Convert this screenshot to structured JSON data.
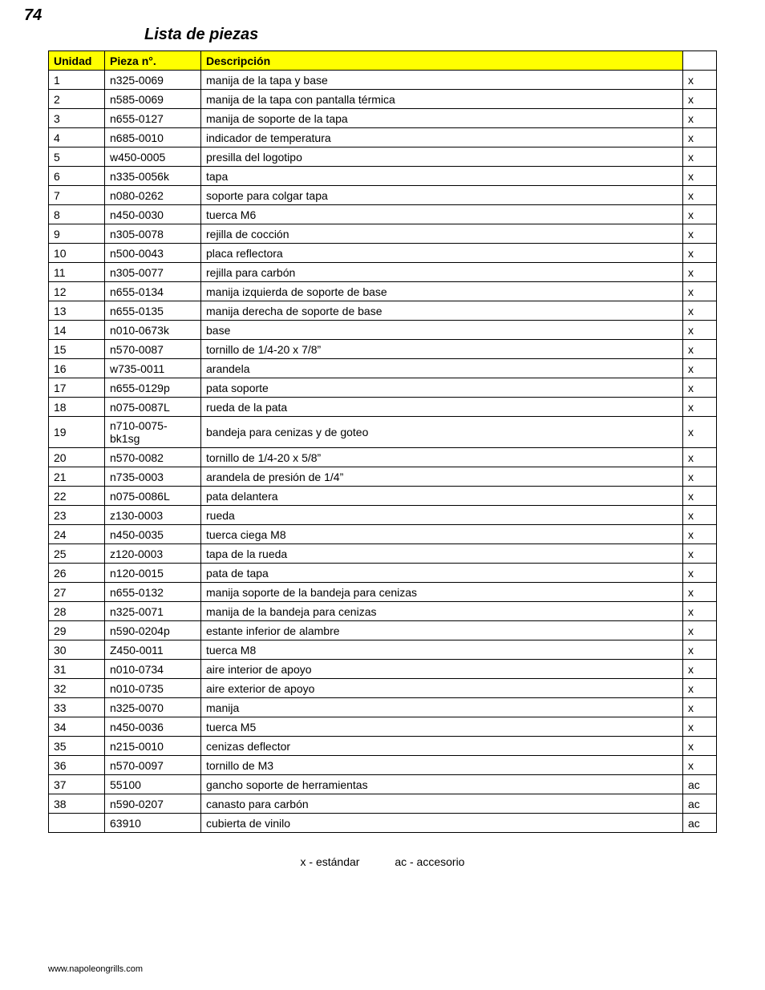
{
  "page_number": "74",
  "title": "Lista de piezas",
  "headers": {
    "unidad": "Unidad",
    "pieza": "Pieza n°.",
    "descripcion": "Descripción",
    "flag": ""
  },
  "rows": [
    {
      "unidad": "1",
      "pieza": "n325-0069",
      "desc": "manija de la tapa y base",
      "flag": "x"
    },
    {
      "unidad": "2",
      "pieza": "n585-0069",
      "desc": "manija de la tapa con pantalla térmica",
      "flag": "x"
    },
    {
      "unidad": "3",
      "pieza": "n655-0127",
      "desc": "manija de soporte de la tapa",
      "flag": "x"
    },
    {
      "unidad": "4",
      "pieza": "n685-0010",
      "desc": "indicador de temperatura",
      "flag": "x"
    },
    {
      "unidad": "5",
      "pieza": "w450-0005",
      "desc": "presilla del logotipo",
      "flag": "x"
    },
    {
      "unidad": "6",
      "pieza": "n335-0056k",
      "desc": "tapa",
      "flag": "x"
    },
    {
      "unidad": "7",
      "pieza": "n080-0262",
      "desc": "soporte para colgar tapa",
      "flag": "x"
    },
    {
      "unidad": "8",
      "pieza": "n450-0030",
      "desc": "tuerca M6",
      "flag": "x"
    },
    {
      "unidad": "9",
      "pieza": "n305-0078",
      "desc": "rejilla de cocción",
      "flag": "x"
    },
    {
      "unidad": "10",
      "pieza": "n500-0043",
      "desc": "placa reflectora",
      "flag": "x"
    },
    {
      "unidad": "11",
      "pieza": "n305-0077",
      "desc": "rejilla para carbón",
      "flag": "x"
    },
    {
      "unidad": "12",
      "pieza": "n655-0134",
      "desc": "manija izquierda de soporte de base",
      "flag": "x"
    },
    {
      "unidad": "13",
      "pieza": "n655-0135",
      "desc": "manija derecha de soporte de base",
      "flag": "x"
    },
    {
      "unidad": "14",
      "pieza": "n010-0673k",
      "desc": "base",
      "flag": "x"
    },
    {
      "unidad": "15",
      "pieza": "n570-0087",
      "desc": "tornillo de 1/4-20 x 7/8”",
      "flag": "x"
    },
    {
      "unidad": "16",
      "pieza": "w735-0011",
      "desc": "arandela",
      "flag": "x"
    },
    {
      "unidad": "17",
      "pieza": "n655-0129p",
      "desc": "pata soporte",
      "flag": "x"
    },
    {
      "unidad": "18",
      "pieza": "n075-0087L",
      "desc": "rueda de la pata",
      "flag": "x"
    },
    {
      "unidad": "19",
      "pieza": "n710-0075-bk1sg",
      "desc": "bandeja para cenizas y de goteo",
      "flag": "x"
    },
    {
      "unidad": "20",
      "pieza": "n570-0082",
      "desc": "tornillo de 1/4-20 x 5/8”",
      "flag": "x"
    },
    {
      "unidad": "21",
      "pieza": "n735-0003",
      "desc": "arandela de presión de 1/4”",
      "flag": "x"
    },
    {
      "unidad": "22",
      "pieza": "n075-0086L",
      "desc": "pata delantera",
      "flag": "x"
    },
    {
      "unidad": "23",
      "pieza": "z130-0003",
      "desc": "rueda",
      "flag": "x"
    },
    {
      "unidad": "24",
      "pieza": "n450-0035",
      "desc": "tuerca ciega M8",
      "flag": "x"
    },
    {
      "unidad": "25",
      "pieza": "z120-0003",
      "desc": "tapa de la rueda",
      "flag": "x"
    },
    {
      "unidad": "26",
      "pieza": "n120-0015",
      "desc": "pata de tapa",
      "flag": "x"
    },
    {
      "unidad": "27",
      "pieza": "n655-0132",
      "desc": "manija soporte de la bandeja para cenizas",
      "flag": "x"
    },
    {
      "unidad": "28",
      "pieza": "n325-0071",
      "desc": "manija de la bandeja para cenizas",
      "flag": "x"
    },
    {
      "unidad": "29",
      "pieza": "n590-0204p",
      "desc": "estante inferior de alambre",
      "flag": "x"
    },
    {
      "unidad": "30",
      "pieza": "Z450-0011",
      "desc": "tuerca M8",
      "flag": "x"
    },
    {
      "unidad": "31",
      "pieza": "n010-0734",
      "desc": "aire interior de apoyo",
      "flag": "x"
    },
    {
      "unidad": "32",
      "pieza": "n010-0735",
      "desc": "aire exterior de apoyo",
      "flag": "x"
    },
    {
      "unidad": "33",
      "pieza": "n325-0070",
      "desc": "manija",
      "flag": "x"
    },
    {
      "unidad": "34",
      "pieza": "n450-0036",
      "desc": "tuerca M5",
      "flag": "x"
    },
    {
      "unidad": "35",
      "pieza": "n215-0010",
      "desc": "cenizas deflector",
      "flag": "x"
    },
    {
      "unidad": "36",
      "pieza": "n570-0097",
      "desc": "tornillo de M3",
      "flag": "x"
    },
    {
      "unidad": "37",
      "pieza": "55100",
      "desc": "gancho soporte de herramientas",
      "flag": "ac"
    },
    {
      "unidad": "38",
      "pieza": "n590-0207",
      "desc": "canasto para carbón",
      "flag": "ac"
    },
    {
      "unidad": "",
      "pieza": "63910",
      "desc": "cubierta de vinilo",
      "flag": "ac"
    }
  ],
  "legend": {
    "std": "x - estándar",
    "acc": "ac - accesorio"
  },
  "footer_url": "www.napoleongrills.com"
}
